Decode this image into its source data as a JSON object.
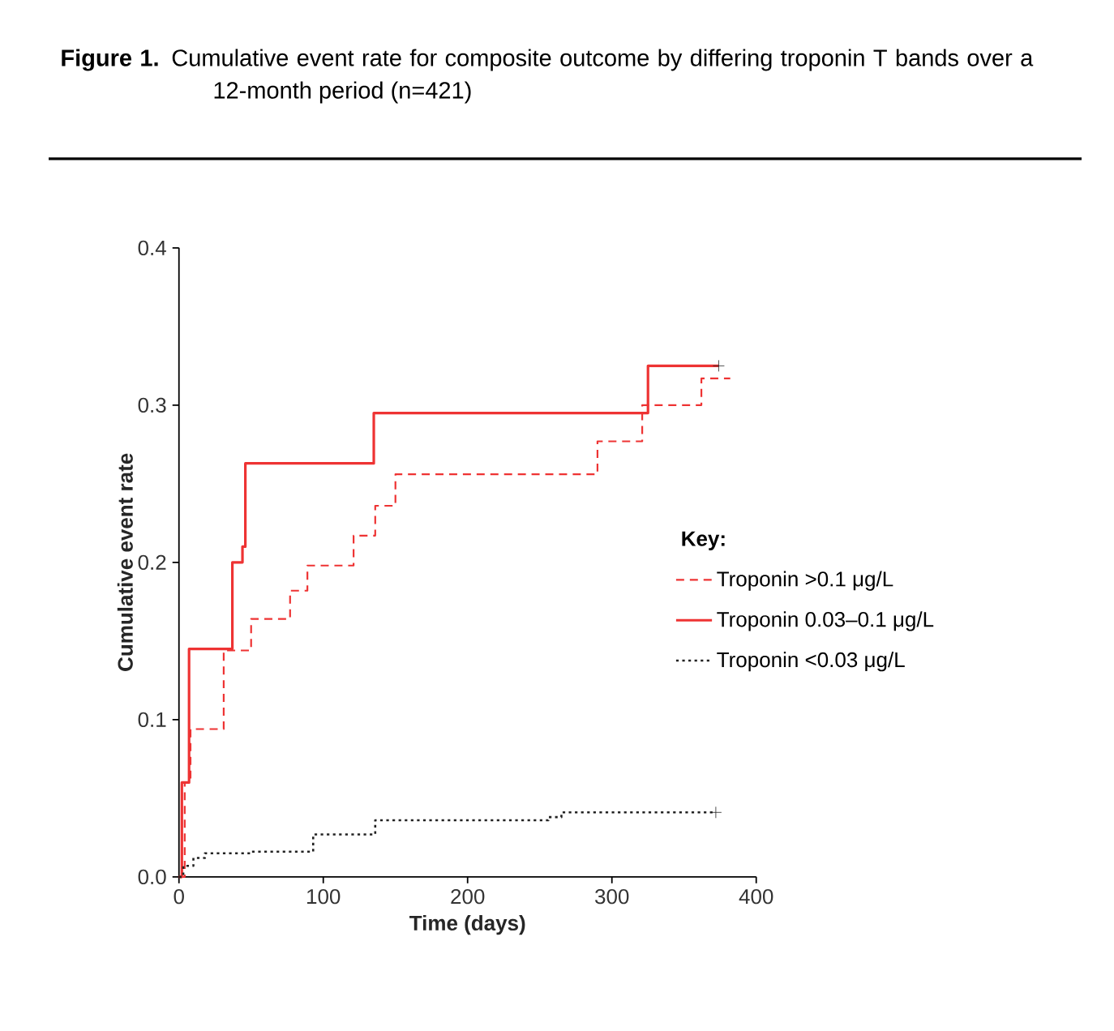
{
  "chart_data": {
    "type": "step",
    "title": "**Figure 1.** Cumulative event rate for composite outcome by differing troponin T bands over a 12-month period (n=421)",
    "xlabel": "Time (days)",
    "ylabel": "Cumulative event rate",
    "legend_title": "Key:",
    "legend": "right",
    "grid": false,
    "xlim": [
      0,
      400
    ],
    "ylim": [
      0,
      0.4
    ],
    "xticks": [
      0,
      100,
      200,
      300,
      400
    ],
    "yticks": [
      {
        "value": 0,
        "label": "0.0"
      },
      {
        "value": 0.1,
        "label": "0.1"
      },
      {
        "value": 0.2,
        "label": "0.2"
      },
      {
        "value": 0.3,
        "label": "0.3"
      },
      {
        "value": 0.4,
        "label": "0.4"
      }
    ],
    "series": [
      {
        "name": "Troponin >0.1 μg/L",
        "color": "#ee3333",
        "line_style": "dashed",
        "x": [
          0,
          4,
          8,
          31,
          50,
          77,
          89,
          121,
          136,
          150,
          290,
          321,
          362,
          382
        ],
        "values": [
          0,
          0.06,
          0.094,
          0.144,
          0.164,
          0.182,
          0.198,
          0.217,
          0.236,
          0.256,
          0.277,
          0.3,
          0.317,
          0.317
        ]
      },
      {
        "name": "Troponin 0.03–0.1 μg/L",
        "color": "#ee3333",
        "line_style": "solid",
        "x": [
          0,
          2,
          7,
          37,
          44,
          46,
          135,
          325,
          374
        ],
        "values": [
          0,
          0.06,
          0.145,
          0.2,
          0.21,
          0.263,
          0.295,
          0.325,
          0.325
        ]
      },
      {
        "name": "Troponin <0.03 μg/L",
        "color": "#222222",
        "line_style": "dotted",
        "x": [
          0,
          3,
          10,
          18,
          50,
          82,
          93,
          136,
          256,
          265,
          372
        ],
        "values": [
          0,
          0.007,
          0.012,
          0.015,
          0.016,
          0.016,
          0.027,
          0.036,
          0.038,
          0.041,
          0.041
        ]
      },
      {
        "type": "scatter",
        "marker": "cross",
        "color": "#222222",
        "x": [
          374,
          372
        ],
        "values": [
          0.325,
          0.041
        ]
      }
    ]
  }
}
